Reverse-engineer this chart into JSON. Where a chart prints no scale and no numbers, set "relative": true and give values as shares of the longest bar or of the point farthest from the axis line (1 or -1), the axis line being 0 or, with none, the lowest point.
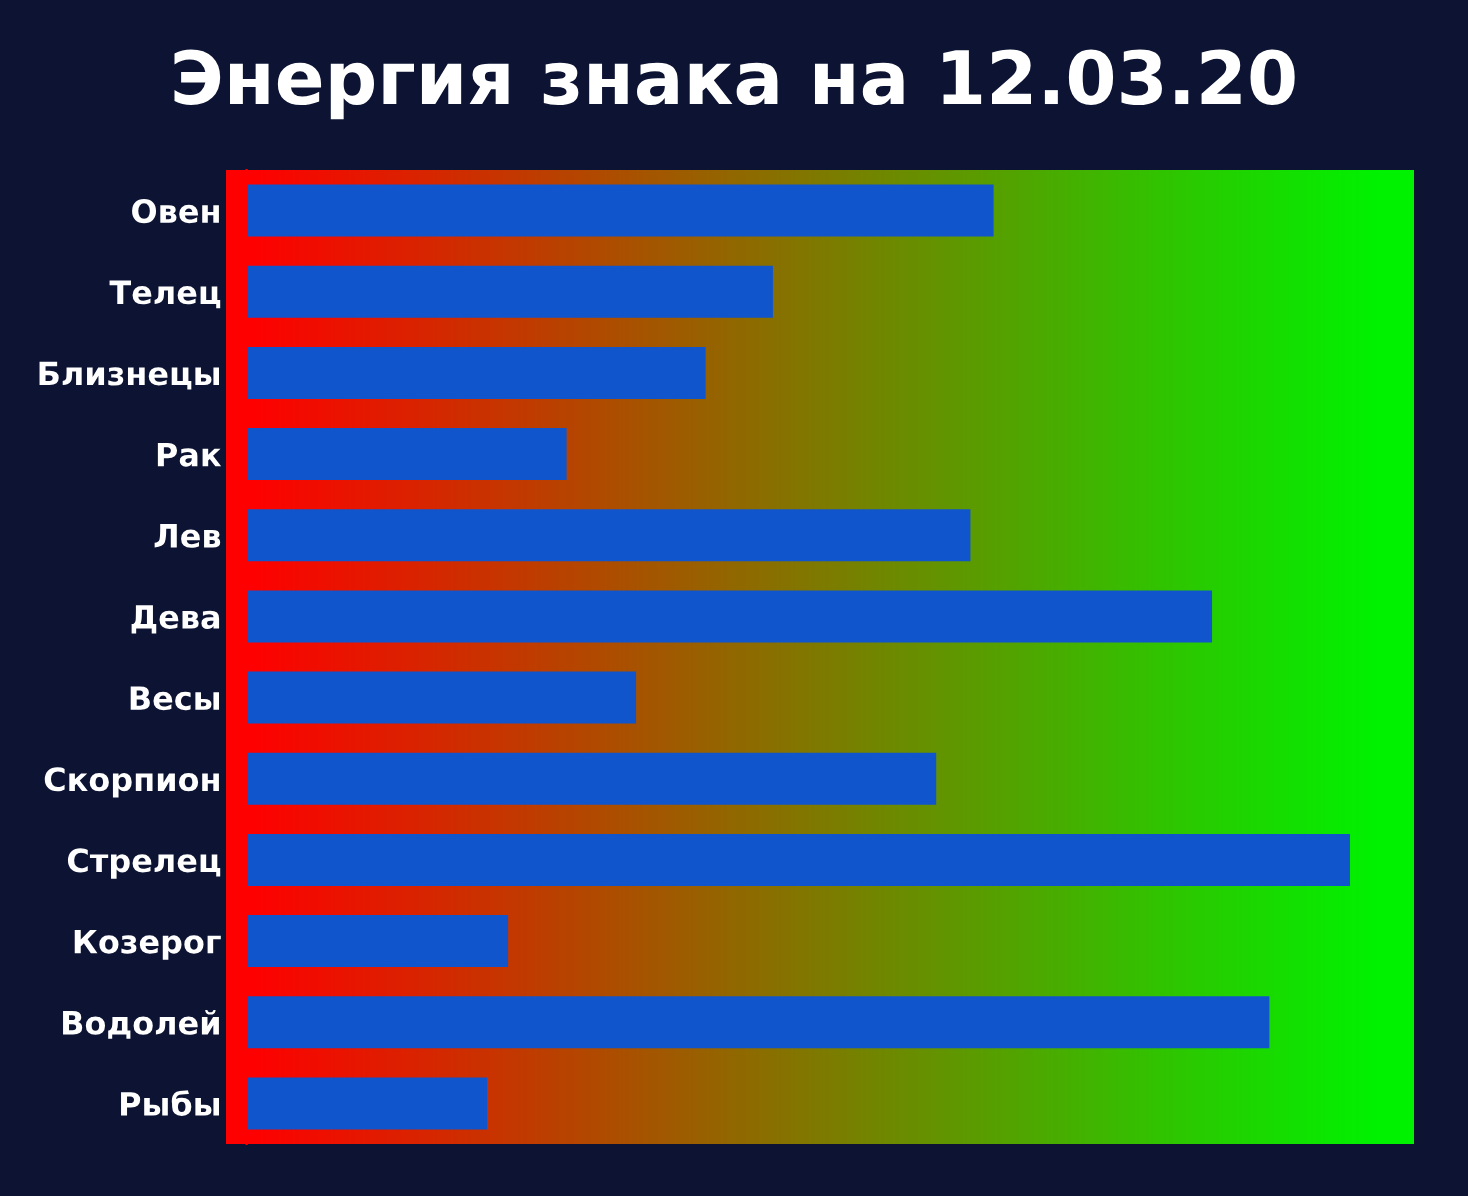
{
  "chart_data": {
    "type": "bar",
    "orientation": "horizontal",
    "relative": true,
    "title": "Энергия знака на 12.03.20",
    "categories": [
      "Овен",
      "Телец",
      "Близнецы",
      "Рак",
      "Лев",
      "Дева",
      "Весы",
      "Скорпион",
      "Стрелец",
      "Козерог",
      "Водолей",
      "Рыбы"
    ],
    "values": [
      0.677,
      0.477,
      0.416,
      0.29,
      0.656,
      0.875,
      0.353,
      0.625,
      1,
      0.237,
      0.927,
      0.218
    ],
    "color": "#1155cc"
  }
}
